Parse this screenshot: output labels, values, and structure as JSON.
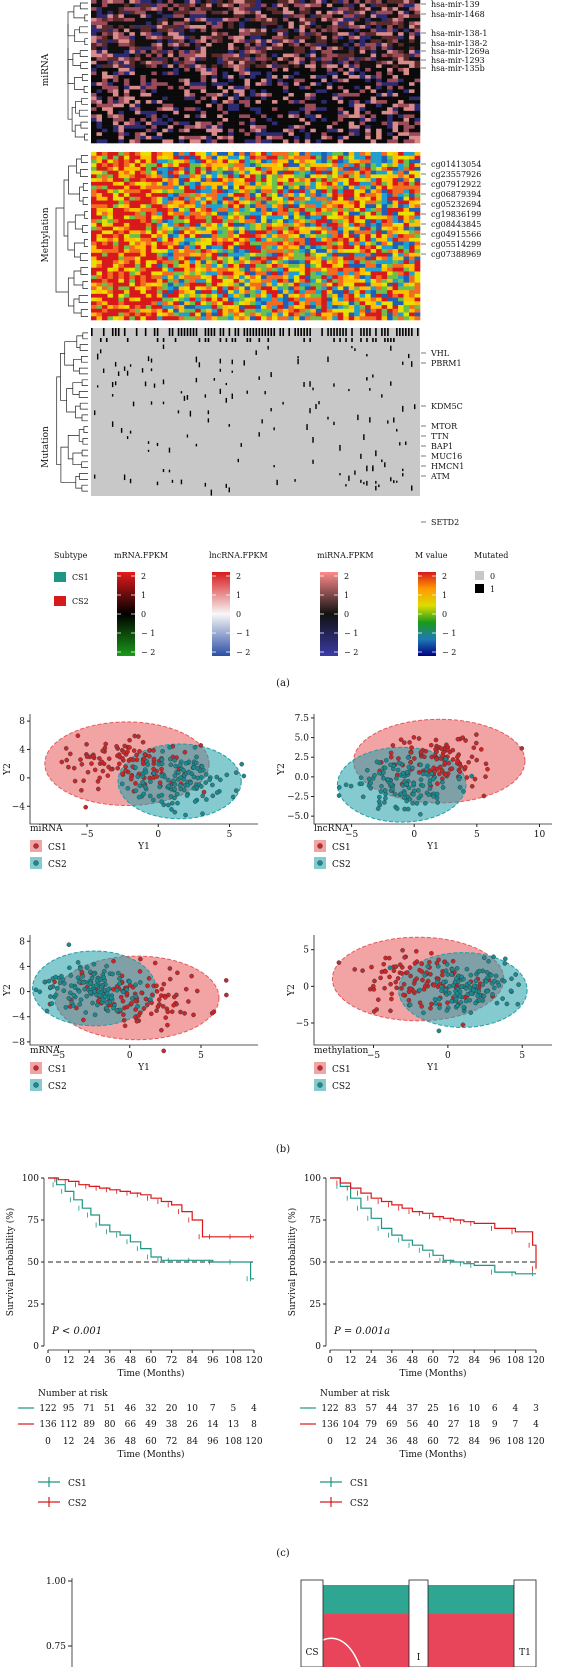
{
  "heatmap": {
    "blocks": [
      {
        "label": "miRNA",
        "genes": [
          "hsa-mir-139",
          "hsa-mir-1468",
          "hsa-mir-138-1",
          "hsa-mir-138-2",
          "hsa-mir-1269a",
          "hsa-mir-1293",
          "hsa-mir-135b"
        ]
      },
      {
        "label": "Methylation",
        "genes": [
          "cg01413054",
          "cg23557926",
          "cg07912922",
          "cg06879394",
          "cg05232694",
          "cg19836199",
          "cg08443845",
          "cg04915566",
          "cg05514299",
          "cg07388969"
        ]
      },
      {
        "label": "Mutation",
        "genes": [
          "VHL",
          "PBRM1",
          "KDM5C",
          "MTOR",
          "TTN",
          "BAP1",
          "MUC16",
          "HMCN1",
          "ATM",
          "SETD2"
        ]
      }
    ],
    "legend": {
      "subtype": {
        "title": "Subtype",
        "items": [
          {
            "label": "CS1",
            "color": "#1f9584"
          },
          {
            "label": "CS2",
            "color": "#d7191c"
          }
        ]
      },
      "scales": [
        {
          "title": "mRNA.FPKM",
          "ticks": [
            "2",
            "1",
            "0",
            "− 1",
            "− 2"
          ],
          "colors": [
            "#e41a1c",
            "#000000",
            "#1a9a1a"
          ]
        },
        {
          "title": "lncRNA.FPKM",
          "ticks": [
            "2",
            "1",
            "0",
            "− 1",
            "− 2"
          ],
          "colors": [
            "#d7191c",
            "#f7f7f7",
            "#2c4fa5"
          ]
        },
        {
          "title": "miRNA.FPKM",
          "ticks": [
            "2",
            "1",
            "0",
            "− 1",
            "− 2"
          ],
          "colors": [
            "#ff8a8a",
            "#111111",
            "#3a3aa8"
          ]
        },
        {
          "title": "M value",
          "ticks": [
            "2",
            "1",
            "0",
            "− 1",
            "− 2"
          ],
          "colors": [
            "#d7191c",
            "#ff9900",
            "#dddd00",
            "#1a9a1a",
            "#1f78b4",
            "#000080"
          ]
        }
      ],
      "mutated": {
        "title": "Mutated",
        "items": [
          {
            "label": "0",
            "color": "#c8c8c8"
          },
          {
            "label": "1",
            "color": "#000000"
          }
        ]
      }
    },
    "caption": "(a)"
  },
  "chart_data": [
    {
      "type": "scatter",
      "panel": "miRNA",
      "xlabel": "Y1",
      "ylabel": "Y2",
      "xticks": [
        "−5",
        "0",
        "5"
      ],
      "yticks": [
        "8",
        "4",
        "0",
        "−4"
      ],
      "xlim": [
        -9,
        7
      ],
      "ylim": [
        -6.5,
        9
      ],
      "series": [
        {
          "name": "CS1",
          "color": "#e8585a",
          "center": [
            -2.2,
            2.0
          ],
          "count": 120
        },
        {
          "name": "CS2",
          "color": "#1f9fa8",
          "center": [
            1.5,
            -0.5
          ],
          "count": 130
        }
      ]
    },
    {
      "type": "scatter",
      "panel": "lncRNA",
      "xlabel": "Y1",
      "ylabel": "Y2",
      "xticks": [
        "−5",
        "0",
        "5",
        "10"
      ],
      "yticks": [
        "7.5",
        "5.0",
        "2.5",
        "0.0",
        "−2.5",
        "−5.0"
      ],
      "xlim": [
        -8,
        11
      ],
      "ylim": [
        -6,
        8
      ],
      "series": [
        {
          "name": "CS1",
          "color": "#e8585a",
          "center": [
            2.0,
            2.0
          ],
          "count": 120
        },
        {
          "name": "CS2",
          "color": "#1f9fa8",
          "center": [
            -1.0,
            -1.0
          ],
          "count": 130
        }
      ]
    },
    {
      "type": "scatter",
      "panel": "mRNA",
      "xlabel": "Y1",
      "ylabel": "Y2",
      "xticks": [
        "−5",
        "0",
        "5"
      ],
      "yticks": [
        "8",
        "4",
        "0",
        "−4",
        "−8"
      ],
      "xlim": [
        -7,
        9
      ],
      "ylim": [
        -8.5,
        9
      ],
      "series": [
        {
          "name": "CS1",
          "color": "#e8585a",
          "center": [
            0.5,
            -1.0
          ],
          "count": 120
        },
        {
          "name": "CS2",
          "color": "#1f9fa8",
          "center": [
            -2.5,
            0.5
          ],
          "count": 130
        }
      ]
    },
    {
      "type": "scatter",
      "panel": "methylation",
      "xlabel": "Y1",
      "ylabel": "Y2",
      "xticks": [
        "−5",
        "0",
        "5"
      ],
      "yticks": [
        "5",
        "0",
        "−5"
      ],
      "xlim": [
        -9,
        7
      ],
      "ylim": [
        -8,
        7
      ],
      "series": [
        {
          "name": "CS1",
          "color": "#e8585a",
          "center": [
            -2.0,
            1.0
          ],
          "count": 120
        },
        {
          "name": "CS2",
          "color": "#1f9fa8",
          "center": [
            1.0,
            -0.5
          ],
          "count": 130
        }
      ]
    },
    {
      "type": "line",
      "panel": "survival-left",
      "xlabel": "Time (Months)",
      "ylabel": "Survival probability (%)",
      "annotation": "P < 0.001",
      "xticks": [
        "0",
        "12",
        "24",
        "36",
        "48",
        "60",
        "72",
        "84",
        "96",
        "108",
        "120"
      ],
      "yticks": [
        "100",
        "75",
        "50",
        "25",
        "0"
      ],
      "xlim": [
        0,
        120
      ],
      "ylim": [
        0,
        100
      ],
      "reference_line": 50,
      "series": [
        {
          "name": "CS1",
          "color": "#1f9584",
          "x": [
            0,
            5,
            10,
            15,
            20,
            25,
            30,
            36,
            42,
            48,
            54,
            60,
            66,
            72,
            84,
            96,
            108,
            118,
            120
          ],
          "y": [
            100,
            96,
            92,
            87,
            82,
            78,
            72,
            68,
            66,
            62,
            58,
            53,
            51,
            51,
            51,
            50,
            50,
            40,
            40
          ]
        },
        {
          "name": "CS2",
          "color": "#d7191c",
          "x": [
            0,
            6,
            12,
            18,
            24,
            30,
            36,
            42,
            48,
            54,
            60,
            66,
            72,
            78,
            84,
            90,
            96,
            108,
            120
          ],
          "y": [
            100,
            99,
            98,
            96,
            95,
            94,
            93,
            92,
            91,
            90,
            88,
            86,
            84,
            80,
            75,
            65,
            65,
            65,
            65
          ]
        }
      ],
      "risk_table": {
        "title": "Number at risk",
        "xlabel": "Time (Months)",
        "rows": [
          {
            "name": "CS1",
            "values": [
              "122",
              "95",
              "71",
              "51",
              "46",
              "32",
              "20",
              "10",
              "7",
              "5",
              "4"
            ]
          },
          {
            "name": "CS2",
            "values": [
              "136",
              "112",
              "89",
              "80",
              "66",
              "49",
              "38",
              "26",
              "14",
              "13",
              "8"
            ]
          }
        ]
      }
    },
    {
      "type": "line",
      "panel": "survival-right",
      "xlabel": "Time (Months)",
      "ylabel": "Survival probability (%)",
      "annotation": "P = 0.001a",
      "xticks": [
        "0",
        "12",
        "24",
        "36",
        "48",
        "60",
        "72",
        "84",
        "96",
        "108",
        "120"
      ],
      "yticks": [
        "100",
        "75",
        "50",
        "25",
        "0"
      ],
      "xlim": [
        0,
        120
      ],
      "ylim": [
        0,
        100
      ],
      "reference_line": 50,
      "series": [
        {
          "name": "CS1",
          "color": "#1f9584",
          "x": [
            0,
            6,
            12,
            18,
            24,
            30,
            36,
            42,
            48,
            54,
            60,
            66,
            72,
            78,
            84,
            96,
            108,
            120
          ],
          "y": [
            100,
            95,
            88,
            82,
            76,
            70,
            66,
            63,
            60,
            57,
            54,
            51,
            50,
            49,
            48,
            44,
            43,
            43
          ]
        },
        {
          "name": "CS2",
          "color": "#d7191c",
          "x": [
            0,
            6,
            12,
            18,
            24,
            30,
            36,
            42,
            48,
            54,
            60,
            66,
            72,
            78,
            84,
            96,
            108,
            118,
            120
          ],
          "y": [
            100,
            97,
            94,
            91,
            88,
            86,
            84,
            82,
            80,
            79,
            77,
            76,
            75,
            74,
            73,
            70,
            68,
            60,
            46
          ]
        }
      ],
      "risk_table": {
        "title": "Number at risk",
        "xlabel": "Time (Months)",
        "rows": [
          {
            "name": "CS1",
            "values": [
              "122",
              "83",
              "57",
              "44",
              "37",
              "25",
              "16",
              "10",
              "6",
              "4",
              "3"
            ]
          },
          {
            "name": "CS2",
            "values": [
              "136",
              "104",
              "79",
              "69",
              "56",
              "40",
              "27",
              "18",
              "9",
              "7",
              "4"
            ]
          }
        ]
      }
    },
    {
      "type": "bar",
      "panel": "bottom",
      "yticks": [
        "1.00",
        "0.75"
      ],
      "ylim": [
        0,
        1
      ],
      "axis_labels": [
        "CS",
        "I",
        "T1"
      ]
    }
  ],
  "scatter_legends": {
    "miRNA": "miRNA",
    "lncRNA": "lncRNA",
    "mRNA": "mRNA",
    "methylation": "methylation",
    "items": [
      "CS1",
      "CS2"
    ]
  },
  "survival_legend": {
    "items": [
      "CS1",
      "CS2"
    ]
  },
  "captions": {
    "a": "(a)",
    "b": "(b)",
    "c": "(c)"
  }
}
